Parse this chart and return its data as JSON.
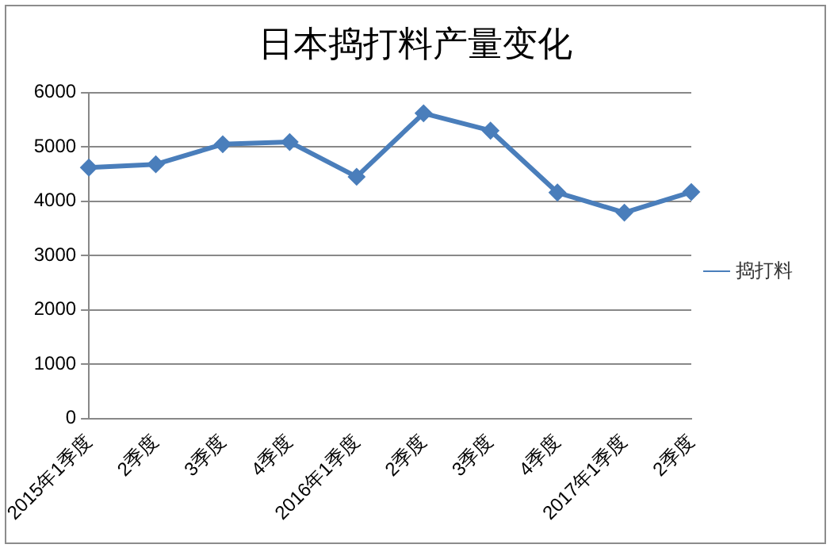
{
  "chart_data": {
    "type": "line",
    "title": "日本捣打料产量变化",
    "categories": [
      "2015年1季度",
      "2季度",
      "3季度",
      "4季度",
      "2016年1季度",
      "2季度",
      "3季度",
      "4季度",
      "2017年1季度",
      "2季度"
    ],
    "series": [
      {
        "name": "捣打料",
        "color": "#4a7ebb",
        "values": [
          4620,
          4680,
          5050,
          5090,
          4450,
          5620,
          5300,
          4160,
          3790,
          4170
        ]
      }
    ],
    "ylim": [
      0,
      6000
    ],
    "yticks": [
      0,
      1000,
      2000,
      3000,
      4000,
      5000,
      6000
    ],
    "grid": "y",
    "legend": "right",
    "marker": "diamond",
    "line_style": "solid"
  }
}
